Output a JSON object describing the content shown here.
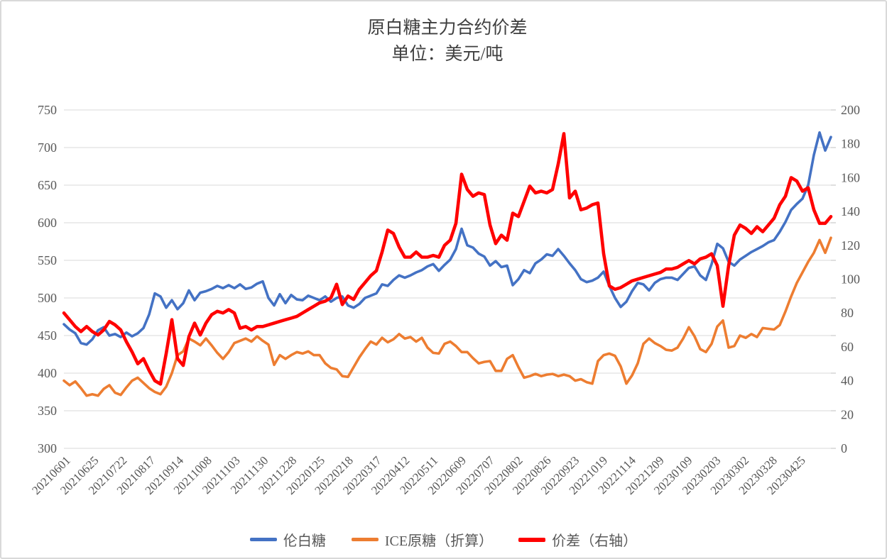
{
  "chart_data": {
    "type": "line",
    "title": "原白糖主力合约价差",
    "subtitle": "单位：美元/吨",
    "grid": "horizontal",
    "legend_position": "bottom",
    "left_axis": {
      "min": 300,
      "max": 750,
      "step": 50,
      "ticks": [
        750,
        700,
        650,
        600,
        550,
        500,
        450,
        400,
        350,
        300
      ]
    },
    "right_axis": {
      "min": 0,
      "max": 200,
      "step": 20,
      "ticks": [
        200,
        180,
        160,
        140,
        120,
        100,
        80,
        60,
        40,
        20,
        0
      ]
    },
    "x_tick_labels": [
      "20210601",
      "20210625",
      "20210722",
      "20210817",
      "20210914",
      "20211008",
      "20211103",
      "20211130",
      "20211228",
      "20220125",
      "20220218",
      "20220317",
      "20220412",
      "20220511",
      "20220609",
      "20220707",
      "20220802",
      "20220826",
      "20220923",
      "20221019",
      "20221114",
      "20221209",
      "20230109",
      "20230203",
      "20230302",
      "20230328",
      "20230425"
    ],
    "sampling_note": "series values are evenly spaced daily samples spanning the full x-range of the plot",
    "series": [
      {
        "name": "伦白糖",
        "key": "london-white-sugar",
        "axis": "left",
        "color": "#4472C4",
        "values": [
          465,
          458,
          453,
          440,
          438,
          445,
          457,
          461,
          450,
          452,
          448,
          454,
          449,
          453,
          460,
          478,
          506,
          502,
          487,
          497,
          485,
          493,
          510,
          497,
          507,
          509,
          512,
          516,
          513,
          517,
          513,
          518,
          512,
          514,
          519,
          522,
          500,
          490,
          505,
          493,
          504,
          498,
          497,
          503,
          500,
          497,
          502,
          495,
          500,
          502,
          490,
          487,
          492,
          500,
          503,
          506,
          518,
          516,
          524,
          530,
          527,
          530,
          534,
          537,
          542,
          545,
          536,
          544,
          551,
          565,
          592,
          570,
          567,
          559,
          555,
          543,
          549,
          541,
          543,
          517,
          525,
          537,
          533,
          546,
          551,
          558,
          556,
          565,
          556,
          546,
          537,
          525,
          521,
          523,
          527,
          535,
          516,
          500,
          488,
          495,
          509,
          520,
          518,
          510,
          520,
          525,
          527,
          527,
          524,
          532,
          540,
          542,
          530,
          524,
          545,
          572,
          566,
          548,
          543,
          551,
          556,
          561,
          565,
          569,
          574,
          577,
          588,
          601,
          617,
          625,
          632,
          650,
          690,
          720,
          696,
          714
        ]
      },
      {
        "name": "ICE原糖（折算）",
        "key": "ice-raw-sugar-converted",
        "axis": "left",
        "color": "#ED7D31",
        "values": [
          390,
          384,
          389,
          380,
          370,
          372,
          370,
          379,
          384,
          374,
          371,
          381,
          390,
          394,
          387,
          380,
          375,
          372,
          382,
          400,
          424,
          429,
          446,
          442,
          437,
          446,
          437,
          427,
          419,
          428,
          440,
          443,
          446,
          442,
          449,
          443,
          438,
          411,
          424,
          419,
          424,
          428,
          426,
          429,
          424,
          424,
          413,
          407,
          405,
          396,
          395,
          408,
          421,
          432,
          442,
          438,
          447,
          441,
          445,
          452,
          446,
          448,
          442,
          447,
          434,
          427,
          426,
          439,
          442,
          436,
          428,
          428,
          420,
          413,
          415,
          416,
          403,
          403,
          419,
          424,
          408,
          394,
          396,
          399,
          396,
          398,
          399,
          396,
          398,
          396,
          390,
          392,
          388,
          386,
          416,
          424,
          426,
          423,
          409,
          386,
          397,
          413,
          439,
          446,
          440,
          436,
          431,
          430,
          434,
          446,
          461,
          449,
          432,
          428,
          439,
          462,
          470,
          434,
          436,
          450,
          447,
          452,
          448,
          460,
          459,
          458,
          464,
          482,
          502,
          520,
          534,
          548,
          560,
          577,
          560,
          580
        ]
      },
      {
        "name": "价差（右轴）",
        "key": "price-spread-right-axis",
        "axis": "right",
        "color": "#FF0000",
        "values": [
          80,
          76,
          72,
          69,
          72,
          69,
          67,
          70,
          75,
          73,
          70,
          63,
          57,
          50,
          53,
          46,
          40,
          38,
          56,
          76,
          53,
          49,
          66,
          74,
          67,
          74,
          79,
          81,
          80,
          82,
          80,
          71,
          72,
          70,
          72,
          72,
          73,
          74,
          75,
          76,
          77,
          78,
          80,
          82,
          84,
          86,
          87,
          89,
          97,
          85,
          90,
          88,
          94,
          98,
          102,
          105,
          116,
          129,
          127,
          119,
          113,
          113,
          116,
          113,
          113,
          114,
          113,
          120,
          123,
          133,
          162,
          153,
          149,
          151,
          150,
          132,
          121,
          126,
          123,
          139,
          137,
          146,
          155,
          151,
          152,
          151,
          153,
          168,
          186,
          148,
          152,
          141,
          142,
          144,
          145,
          115,
          96,
          94,
          95,
          97,
          99,
          100,
          101,
          102,
          103,
          104,
          106,
          106,
          107,
          109,
          111,
          109,
          112,
          113,
          115,
          108,
          84,
          108,
          126,
          132,
          130,
          127,
          131,
          128,
          132,
          136,
          144,
          149,
          160,
          158,
          152,
          154,
          141,
          133,
          133,
          137
        ]
      }
    ],
    "colors": {
      "gridline": "#d9d9d9",
      "axis_text": "#595959",
      "title_text": "#3f3f3f"
    }
  }
}
